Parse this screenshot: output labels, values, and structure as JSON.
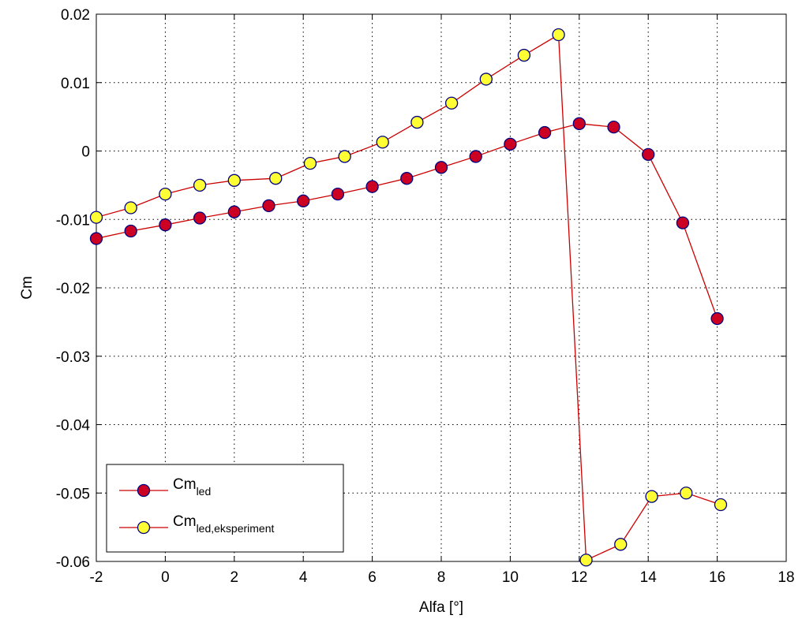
{
  "chart_data": {
    "type": "line",
    "xlabel": "Alfa [°]",
    "ylabel": "Cm",
    "xlim": [
      -2,
      18
    ],
    "ylim": [
      -0.06,
      0.02
    ],
    "xticks": [
      "-2",
      "0",
      "2",
      "4",
      "6",
      "8",
      "10",
      "12",
      "14",
      "16",
      "18"
    ],
    "yticks": [
      "0.02",
      "0.01",
      "0",
      "-0.01",
      "-0.02",
      "-0.03",
      "-0.04",
      "-0.05",
      "-0.06"
    ],
    "grid": true,
    "legend_position": "bottom-left",
    "series": [
      {
        "name_main": "Cm",
        "name_sub": "led",
        "line_color": "#cc0000",
        "marker_fill": "#cc0022",
        "marker_edge": "#000080",
        "x": [
          -2,
          -1,
          0,
          1,
          2,
          3,
          4,
          5,
          6,
          7,
          8,
          9,
          10,
          11,
          12,
          13,
          14,
          15,
          16
        ],
        "y": [
          -0.0128,
          -0.0117,
          -0.0108,
          -0.0098,
          -0.0089,
          -0.008,
          -0.0073,
          -0.0063,
          -0.0052,
          -0.004,
          -0.0024,
          -0.0008,
          0.001,
          0.0027,
          0.004,
          0.0035,
          -0.0005,
          -0.0105,
          -0.0245
        ]
      },
      {
        "name_main": "Cm",
        "name_sub": "led,eksperiment",
        "line_color": "#cc0000",
        "marker_fill": "#ffff33",
        "marker_edge": "#000080",
        "x": [
          -2,
          -1,
          0,
          1,
          2,
          3.2,
          4.2,
          5.2,
          6.3,
          7.3,
          8.3,
          9.3,
          10.4,
          11.4,
          12.2,
          13.2,
          14.1,
          15.1,
          16.1
        ],
        "y": [
          -0.0097,
          -0.0083,
          -0.0063,
          -0.005,
          -0.0043,
          -0.004,
          -0.0018,
          -0.0008,
          0.0013,
          0.0042,
          0.007,
          0.0105,
          0.014,
          0.017,
          -0.0598,
          -0.0575,
          -0.0505,
          -0.05,
          -0.0517
        ]
      }
    ]
  }
}
